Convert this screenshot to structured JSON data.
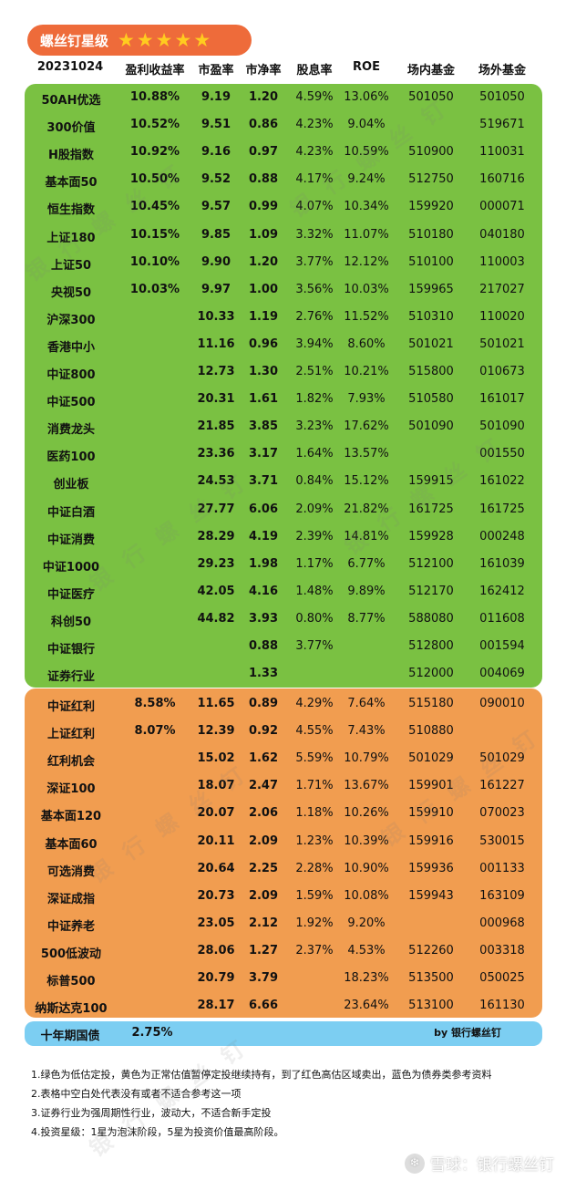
{
  "badge": {
    "title": "螺丝钉星级",
    "stars": 5
  },
  "header": {
    "date": "20231024",
    "cols": [
      "盈利收益率",
      "市盈率",
      "市净率",
      "股息率",
      "ROE",
      "场内基金",
      "场外基金"
    ]
  },
  "green_rows": [
    [
      "50AH优选",
      "10.88%",
      "9.19",
      "1.20",
      "4.59%",
      "13.06%",
      "501050",
      "501050"
    ],
    [
      "300价值",
      "10.52%",
      "9.51",
      "0.86",
      "4.23%",
      "9.04%",
      "",
      "519671"
    ],
    [
      "H股指数",
      "10.92%",
      "9.16",
      "0.97",
      "4.23%",
      "10.59%",
      "510900",
      "110031"
    ],
    [
      "基本面50",
      "10.50%",
      "9.52",
      "0.88",
      "4.17%",
      "9.24%",
      "512750",
      "160716"
    ],
    [
      "恒生指数",
      "10.45%",
      "9.57",
      "0.99",
      "4.07%",
      "10.34%",
      "159920",
      "000071"
    ],
    [
      "上证180",
      "10.15%",
      "9.85",
      "1.09",
      "3.32%",
      "11.07%",
      "510180",
      "040180"
    ],
    [
      "上证50",
      "10.10%",
      "9.90",
      "1.20",
      "3.77%",
      "12.12%",
      "510100",
      "110003"
    ],
    [
      "央视50",
      "10.03%",
      "9.97",
      "1.00",
      "3.56%",
      "10.03%",
      "159965",
      "217027"
    ],
    [
      "沪深300",
      "",
      "10.33",
      "1.19",
      "2.76%",
      "11.52%",
      "510310",
      "110020"
    ],
    [
      "香港中小",
      "",
      "11.16",
      "0.96",
      "3.94%",
      "8.60%",
      "501021",
      "501021"
    ],
    [
      "中证800",
      "",
      "12.73",
      "1.30",
      "2.51%",
      "10.21%",
      "515800",
      "010673"
    ],
    [
      "中证500",
      "",
      "20.31",
      "1.61",
      "1.82%",
      "7.93%",
      "510580",
      "161017"
    ],
    [
      "消费龙头",
      "",
      "21.85",
      "3.85",
      "3.23%",
      "17.62%",
      "501090",
      "501090"
    ],
    [
      "医药100",
      "",
      "23.36",
      "3.17",
      "1.64%",
      "13.57%",
      "",
      "001550"
    ],
    [
      "创业板",
      "",
      "24.53",
      "3.71",
      "0.84%",
      "15.12%",
      "159915",
      "161022"
    ],
    [
      "中证白酒",
      "",
      "27.77",
      "6.06",
      "2.09%",
      "21.82%",
      "161725",
      "161725"
    ],
    [
      "中证消费",
      "",
      "28.29",
      "4.19",
      "2.39%",
      "14.81%",
      "159928",
      "000248"
    ],
    [
      "中证1000",
      "",
      "29.23",
      "1.98",
      "1.17%",
      "6.77%",
      "512100",
      "161039"
    ],
    [
      "中证医疗",
      "",
      "42.05",
      "4.16",
      "1.48%",
      "9.89%",
      "512170",
      "162412"
    ],
    [
      "科创50",
      "",
      "44.82",
      "3.93",
      "0.80%",
      "8.77%",
      "588080",
      "011608"
    ],
    [
      "中证银行",
      "",
      "",
      "0.88",
      "3.77%",
      "",
      "512800",
      "001594"
    ],
    [
      "证券行业",
      "",
      "",
      "1.33",
      "",
      "",
      "512000",
      "004069"
    ]
  ],
  "orange_rows": [
    [
      "中证红利",
      "8.58%",
      "11.65",
      "0.89",
      "4.29%",
      "7.64%",
      "515180",
      "090010"
    ],
    [
      "上证红利",
      "8.07%",
      "12.39",
      "0.92",
      "4.55%",
      "7.43%",
      "510880",
      ""
    ],
    [
      "红利机会",
      "",
      "15.02",
      "1.62",
      "5.59%",
      "10.79%",
      "501029",
      "501029"
    ],
    [
      "深证100",
      "",
      "18.07",
      "2.47",
      "1.71%",
      "13.67%",
      "159901",
      "161227"
    ],
    [
      "基本面120",
      "",
      "20.07",
      "2.06",
      "1.18%",
      "10.26%",
      "159910",
      "070023"
    ],
    [
      "基本面60",
      "",
      "20.11",
      "2.09",
      "1.23%",
      "10.39%",
      "159916",
      "530015"
    ],
    [
      "可选消费",
      "",
      "20.64",
      "2.25",
      "2.28%",
      "10.90%",
      "159936",
      "001133"
    ],
    [
      "深证成指",
      "",
      "20.73",
      "2.09",
      "1.59%",
      "10.08%",
      "159943",
      "163109"
    ],
    [
      "中证养老",
      "",
      "23.05",
      "2.12",
      "1.92%",
      "9.20%",
      "",
      "000968"
    ],
    [
      "500低波动",
      "",
      "28.06",
      "1.27",
      "2.37%",
      "4.53%",
      "512260",
      "003318"
    ],
    [
      "标普500",
      "",
      "20.79",
      "3.79",
      "",
      "18.23%",
      "513500",
      "050025"
    ],
    [
      "纳斯达克100",
      "",
      "28.17",
      "6.66",
      "",
      "23.64%",
      "513100",
      "161130"
    ]
  ],
  "bond": {
    "name": "十年期国债",
    "yield": "2.75%",
    "by": "by 银行螺丝钉"
  },
  "notes": [
    "1.绿色为低估定投，黄色为正常估值暂停定投继续持有，到了红色高估区域卖出，蓝色为债券类参考资料",
    "2.表格中空白处代表没有或者不适合参考这一项",
    "3.证券行业为强周期性行业，波动大，不适合新手定投",
    "4.投资星级：1星为泡沫阶段，5星为投资价值最高阶段。"
  ],
  "footer": {
    "text": "雪球：银行螺丝钉"
  },
  "watermark": "银行螺丝钉",
  "colors": {
    "green": "#7ac142",
    "orange": "#f19d50",
    "blue": "#7ccef2",
    "badge": "#ee6b3a",
    "star": "#ffcc1f"
  }
}
